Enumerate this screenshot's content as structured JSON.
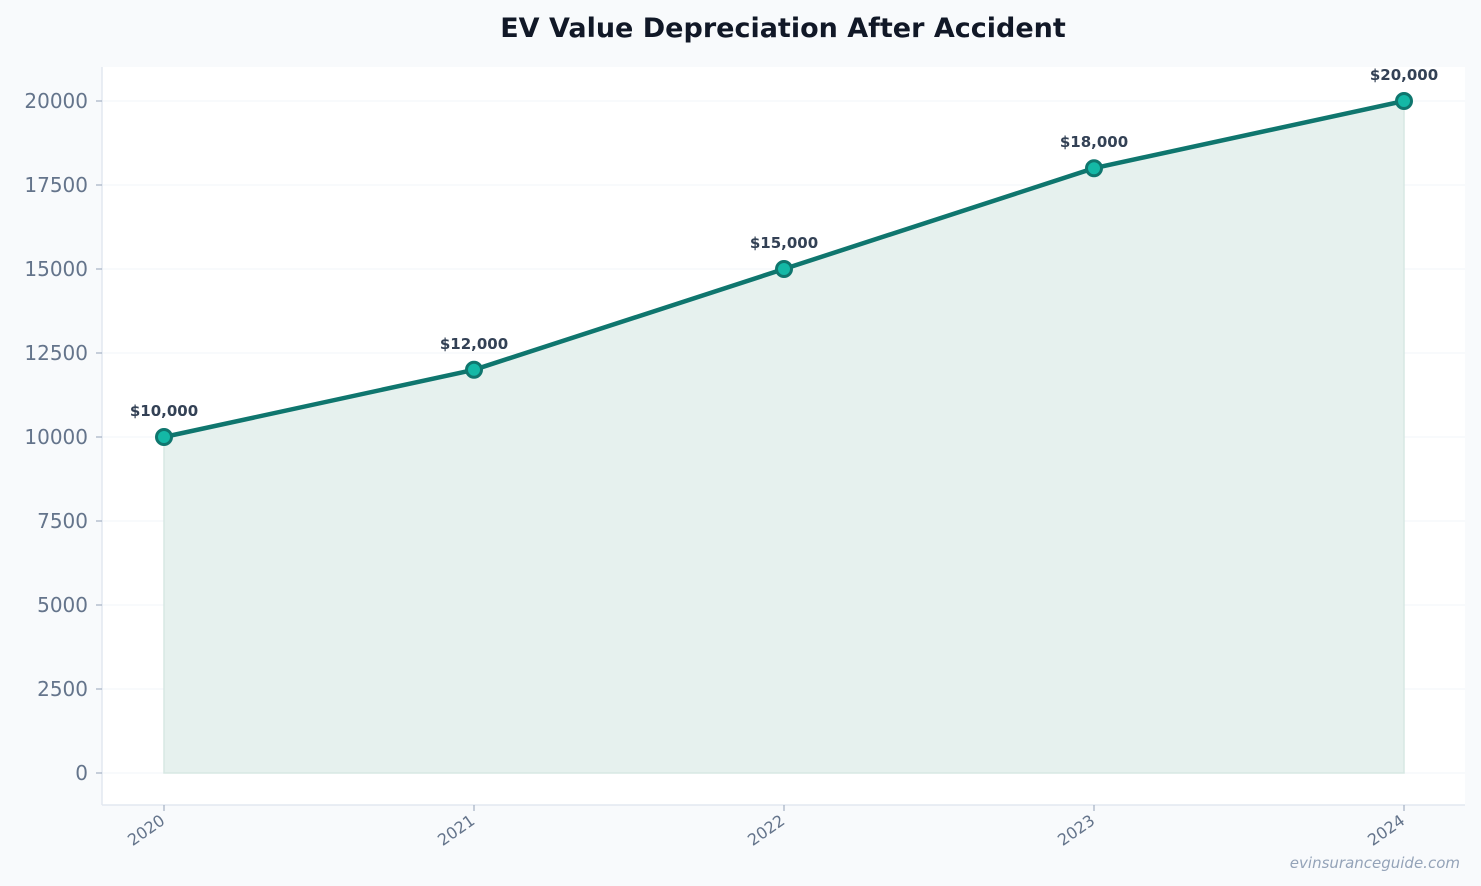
{
  "chart_data": {
    "type": "area",
    "title": "EV Value Depreciation After Accident",
    "xlabel": "",
    "ylabel": "",
    "categories": [
      "2020",
      "2021",
      "2022",
      "2023",
      "2024"
    ],
    "series": [
      {
        "values": [
          10000,
          12000,
          15000,
          18000,
          20000
        ],
        "labels": [
          "$10,000",
          "$12,000",
          "$15,000",
          "$18,000",
          "$20,000"
        ]
      }
    ],
    "yticks": [
      0,
      2500,
      5000,
      7500,
      10000,
      12500,
      15000,
      17500,
      20000
    ],
    "ylim": [
      -950,
      21000
    ],
    "grid": true,
    "legend": "none",
    "colors": {
      "line": "#0f766e",
      "marker_fill": "#14b8a6",
      "area_fill": "#e6f1ee",
      "grid": "#f1f5f9",
      "axis": "#e2e8f0"
    }
  },
  "watermark": "evinsuranceguide.com"
}
